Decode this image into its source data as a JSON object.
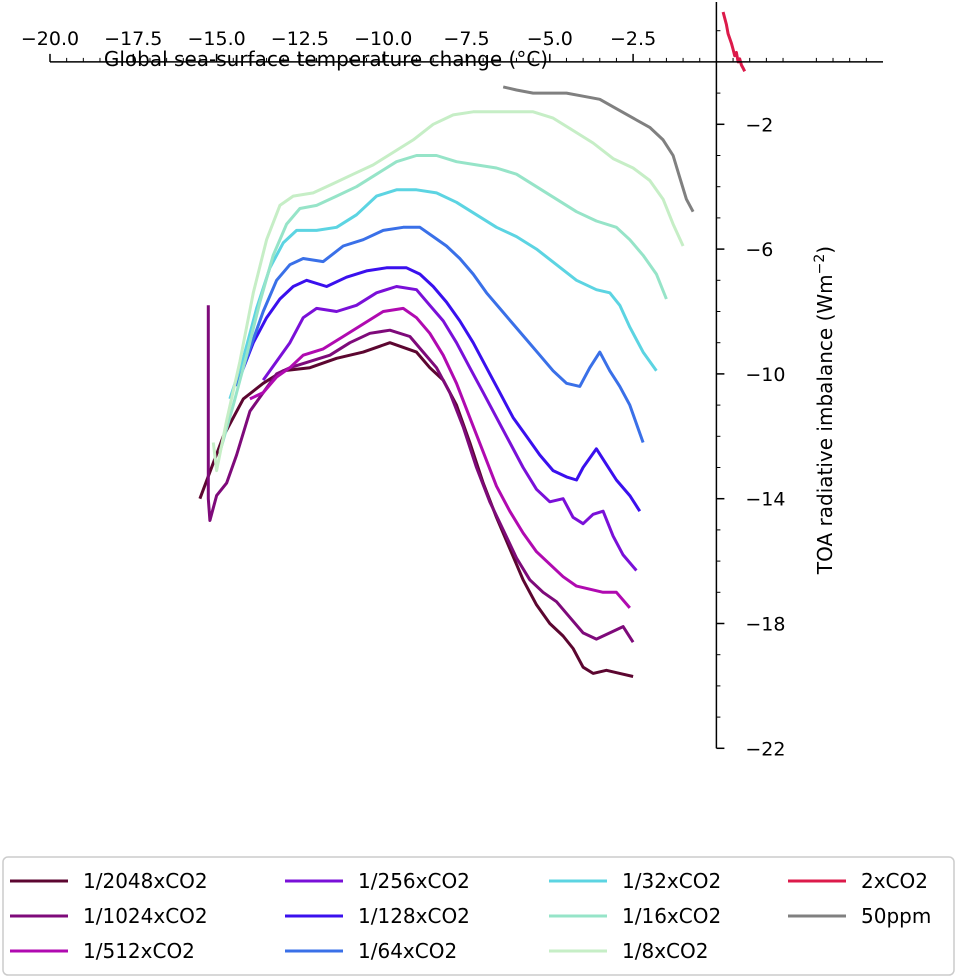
{
  "chart_data": {
    "type": "line",
    "title": "",
    "xlabel": "Global sea-surface temperature change (°C)",
    "ylabel": "TOA radiative imbalance (Wm",
    "ylabel_sup": "−2",
    "xlim": [
      -20.0,
      0.0
    ],
    "ylim": [
      -22,
      2
    ],
    "x_ticks": [
      -20.0,
      -17.5,
      -15.0,
      -12.5,
      -10.0,
      -7.5,
      -5.0,
      -2.5
    ],
    "x_tick_labels": [
      "−20.0",
      "−17.5",
      "−15.0",
      "−12.5",
      "−10.0",
      "−7.5",
      "−5.0",
      "−2.5"
    ],
    "y_ticks": [
      -2,
      -6,
      -10,
      -14,
      -18,
      -22
    ],
    "y_tick_labels": [
      "−2",
      "−6",
      "−10",
      "−14",
      "−18",
      "−22"
    ],
    "x_axis_position": "top",
    "y_axis_position": "right",
    "grid": false,
    "legend_position": "bottom",
    "series": [
      {
        "name": "1/2048xCO2",
        "color": "#5c0630",
        "points": [
          [
            -15.5,
            -14.0
          ],
          [
            -14.8,
            -12.0
          ],
          [
            -14.2,
            -10.8
          ],
          [
            -13.6,
            -10.3
          ],
          [
            -13.0,
            -9.9
          ],
          [
            -12.2,
            -9.8
          ],
          [
            -11.4,
            -9.5
          ],
          [
            -10.6,
            -9.3
          ],
          [
            -9.8,
            -9.0
          ],
          [
            -9.0,
            -9.3
          ],
          [
            -8.6,
            -9.8
          ],
          [
            -8.2,
            -10.2
          ],
          [
            -7.8,
            -11.0
          ],
          [
            -7.4,
            -12.2
          ],
          [
            -7.0,
            -13.5
          ],
          [
            -6.6,
            -14.6
          ],
          [
            -6.2,
            -15.6
          ],
          [
            -5.8,
            -16.6
          ],
          [
            -5.4,
            -17.4
          ],
          [
            -5.0,
            -18.0
          ],
          [
            -4.6,
            -18.4
          ],
          [
            -4.3,
            -18.8
          ],
          [
            -4.0,
            -19.4
          ],
          [
            -3.7,
            -19.6
          ],
          [
            -3.3,
            -19.5
          ],
          [
            -2.9,
            -19.6
          ],
          [
            -2.5,
            -19.7
          ]
        ]
      },
      {
        "name": "1/1024xCO2",
        "color": "#7e0a7a",
        "points": [
          [
            -15.25,
            -7.8
          ],
          [
            -15.25,
            -14.0
          ],
          [
            -15.2,
            -14.7
          ],
          [
            -15.0,
            -13.9
          ],
          [
            -14.7,
            -13.5
          ],
          [
            -14.4,
            -12.6
          ],
          [
            -14.0,
            -11.2
          ],
          [
            -13.6,
            -10.6
          ],
          [
            -13.2,
            -10.0
          ],
          [
            -12.8,
            -9.8
          ],
          [
            -12.2,
            -9.6
          ],
          [
            -11.6,
            -9.4
          ],
          [
            -11.0,
            -9.0
          ],
          [
            -10.4,
            -8.7
          ],
          [
            -9.8,
            -8.6
          ],
          [
            -9.2,
            -8.8
          ],
          [
            -8.8,
            -9.3
          ],
          [
            -8.4,
            -9.8
          ],
          [
            -8.0,
            -10.6
          ],
          [
            -7.6,
            -11.7
          ],
          [
            -7.2,
            -13.0
          ],
          [
            -6.8,
            -14.1
          ],
          [
            -6.4,
            -15.0
          ],
          [
            -6.0,
            -15.9
          ],
          [
            -5.6,
            -16.6
          ],
          [
            -5.2,
            -17.0
          ],
          [
            -4.8,
            -17.3
          ],
          [
            -4.4,
            -17.8
          ],
          [
            -4.0,
            -18.3
          ],
          [
            -3.6,
            -18.5
          ],
          [
            -3.2,
            -18.3
          ],
          [
            -2.8,
            -18.1
          ],
          [
            -2.5,
            -18.6
          ]
        ]
      },
      {
        "name": "1/512xCO2",
        "color": "#b00ab0",
        "points": [
          [
            -14.0,
            -10.8
          ],
          [
            -13.6,
            -10.6
          ],
          [
            -13.2,
            -10.1
          ],
          [
            -12.8,
            -9.8
          ],
          [
            -12.4,
            -9.4
          ],
          [
            -11.8,
            -9.2
          ],
          [
            -11.2,
            -8.8
          ],
          [
            -10.6,
            -8.4
          ],
          [
            -10.0,
            -8.0
          ],
          [
            -9.4,
            -7.9
          ],
          [
            -9.0,
            -8.2
          ],
          [
            -8.6,
            -8.7
          ],
          [
            -8.2,
            -9.4
          ],
          [
            -7.8,
            -10.3
          ],
          [
            -7.4,
            -11.4
          ],
          [
            -7.0,
            -12.5
          ],
          [
            -6.6,
            -13.6
          ],
          [
            -6.2,
            -14.4
          ],
          [
            -5.8,
            -15.1
          ],
          [
            -5.4,
            -15.7
          ],
          [
            -5.0,
            -16.1
          ],
          [
            -4.6,
            -16.5
          ],
          [
            -4.2,
            -16.8
          ],
          [
            -3.8,
            -16.9
          ],
          [
            -3.4,
            -17.0
          ],
          [
            -3.0,
            -17.0
          ],
          [
            -2.6,
            -17.5
          ]
        ]
      },
      {
        "name": "1/256xCO2",
        "color": "#7a10d8",
        "points": [
          [
            -13.6,
            -10.2
          ],
          [
            -13.2,
            -9.6
          ],
          [
            -12.8,
            -9.0
          ],
          [
            -12.4,
            -8.2
          ],
          [
            -12.0,
            -7.9
          ],
          [
            -11.4,
            -8.0
          ],
          [
            -10.8,
            -7.8
          ],
          [
            -10.2,
            -7.4
          ],
          [
            -9.6,
            -7.2
          ],
          [
            -9.0,
            -7.3
          ],
          [
            -8.6,
            -7.8
          ],
          [
            -8.2,
            -8.3
          ],
          [
            -7.8,
            -9.0
          ],
          [
            -7.4,
            -9.8
          ],
          [
            -7.0,
            -10.6
          ],
          [
            -6.6,
            -11.4
          ],
          [
            -6.2,
            -12.2
          ],
          [
            -5.8,
            -13.0
          ],
          [
            -5.4,
            -13.7
          ],
          [
            -5.0,
            -14.1
          ],
          [
            -4.6,
            -14.0
          ],
          [
            -4.3,
            -14.6
          ],
          [
            -4.0,
            -14.8
          ],
          [
            -3.7,
            -14.5
          ],
          [
            -3.4,
            -14.4
          ],
          [
            -3.1,
            -15.2
          ],
          [
            -2.8,
            -15.8
          ],
          [
            -2.4,
            -16.3
          ]
        ]
      },
      {
        "name": "1/128xCO2",
        "color": "#3a10ee",
        "points": [
          [
            -14.3,
            -10.1
          ],
          [
            -13.9,
            -9.0
          ],
          [
            -13.5,
            -8.2
          ],
          [
            -13.1,
            -7.6
          ],
          [
            -12.7,
            -7.2
          ],
          [
            -12.3,
            -7.0
          ],
          [
            -11.7,
            -7.2
          ],
          [
            -11.1,
            -6.9
          ],
          [
            -10.5,
            -6.7
          ],
          [
            -9.9,
            -6.6
          ],
          [
            -9.3,
            -6.6
          ],
          [
            -8.9,
            -6.8
          ],
          [
            -8.5,
            -7.2
          ],
          [
            -8.1,
            -7.7
          ],
          [
            -7.7,
            -8.3
          ],
          [
            -7.3,
            -9.0
          ],
          [
            -6.9,
            -9.8
          ],
          [
            -6.5,
            -10.6
          ],
          [
            -6.1,
            -11.4
          ],
          [
            -5.7,
            -12.0
          ],
          [
            -5.3,
            -12.6
          ],
          [
            -4.9,
            -13.1
          ],
          [
            -4.5,
            -13.3
          ],
          [
            -4.2,
            -13.4
          ],
          [
            -4.0,
            -13.0
          ],
          [
            -3.6,
            -12.4
          ],
          [
            -3.3,
            -12.9
          ],
          [
            -3.0,
            -13.4
          ],
          [
            -2.6,
            -13.9
          ],
          [
            -2.3,
            -14.4
          ]
        ]
      },
      {
        "name": "1/64xCO2",
        "color": "#3a70e8",
        "points": [
          [
            -14.4,
            -10.4
          ],
          [
            -14.0,
            -9.2
          ],
          [
            -13.6,
            -8.0
          ],
          [
            -13.2,
            -7.0
          ],
          [
            -12.8,
            -6.5
          ],
          [
            -12.4,
            -6.3
          ],
          [
            -11.8,
            -6.4
          ],
          [
            -11.2,
            -5.9
          ],
          [
            -10.6,
            -5.7
          ],
          [
            -10.0,
            -5.4
          ],
          [
            -9.4,
            -5.3
          ],
          [
            -8.9,
            -5.3
          ],
          [
            -8.5,
            -5.6
          ],
          [
            -8.1,
            -5.9
          ],
          [
            -7.7,
            -6.3
          ],
          [
            -7.3,
            -6.8
          ],
          [
            -6.9,
            -7.4
          ],
          [
            -6.5,
            -7.9
          ],
          [
            -6.1,
            -8.4
          ],
          [
            -5.7,
            -8.9
          ],
          [
            -5.3,
            -9.4
          ],
          [
            -4.9,
            -9.9
          ],
          [
            -4.5,
            -10.3
          ],
          [
            -4.1,
            -10.4
          ],
          [
            -3.8,
            -9.8
          ],
          [
            -3.5,
            -9.3
          ],
          [
            -3.2,
            -9.9
          ],
          [
            -2.9,
            -10.4
          ],
          [
            -2.6,
            -11.0
          ],
          [
            -2.2,
            -12.2
          ]
        ]
      },
      {
        "name": "1/32xCO2",
        "color": "#5cd4e2",
        "points": [
          [
            -14.6,
            -10.8
          ],
          [
            -14.2,
            -9.5
          ],
          [
            -13.8,
            -7.9
          ],
          [
            -13.4,
            -6.6
          ],
          [
            -13.0,
            -5.8
          ],
          [
            -12.6,
            -5.4
          ],
          [
            -12.0,
            -5.4
          ],
          [
            -11.4,
            -5.3
          ],
          [
            -10.8,
            -4.9
          ],
          [
            -10.2,
            -4.3
          ],
          [
            -9.6,
            -4.1
          ],
          [
            -9.0,
            -4.1
          ],
          [
            -8.4,
            -4.2
          ],
          [
            -7.8,
            -4.5
          ],
          [
            -7.2,
            -4.9
          ],
          [
            -6.6,
            -5.3
          ],
          [
            -6.0,
            -5.6
          ],
          [
            -5.4,
            -6.0
          ],
          [
            -4.8,
            -6.5
          ],
          [
            -4.2,
            -7.0
          ],
          [
            -3.6,
            -7.3
          ],
          [
            -3.2,
            -7.4
          ],
          [
            -2.9,
            -7.8
          ],
          [
            -2.6,
            -8.5
          ],
          [
            -2.2,
            -9.3
          ],
          [
            -1.8,
            -9.9
          ]
        ]
      },
      {
        "name": "1/16xCO2",
        "color": "#96e4c8",
        "points": [
          [
            -14.9,
            -12.5
          ],
          [
            -14.5,
            -11.0
          ],
          [
            -14.1,
            -9.4
          ],
          [
            -13.7,
            -7.7
          ],
          [
            -13.3,
            -6.2
          ],
          [
            -12.9,
            -5.2
          ],
          [
            -12.5,
            -4.7
          ],
          [
            -12.0,
            -4.6
          ],
          [
            -11.4,
            -4.3
          ],
          [
            -10.8,
            -4.0
          ],
          [
            -10.2,
            -3.6
          ],
          [
            -9.6,
            -3.2
          ],
          [
            -9.0,
            -3.0
          ],
          [
            -8.4,
            -3.0
          ],
          [
            -7.8,
            -3.2
          ],
          [
            -7.2,
            -3.3
          ],
          [
            -6.6,
            -3.4
          ],
          [
            -6.0,
            -3.6
          ],
          [
            -5.4,
            -4.0
          ],
          [
            -4.8,
            -4.4
          ],
          [
            -4.2,
            -4.8
          ],
          [
            -3.6,
            -5.1
          ],
          [
            -3.0,
            -5.3
          ],
          [
            -2.6,
            -5.7
          ],
          [
            -2.2,
            -6.2
          ],
          [
            -1.8,
            -6.8
          ],
          [
            -1.5,
            -7.6
          ]
        ]
      },
      {
        "name": "1/8xCO2",
        "color": "#c6eec6",
        "points": [
          [
            -15.1,
            -12.2
          ],
          [
            -15.0,
            -13.1
          ],
          [
            -14.7,
            -11.5
          ],
          [
            -14.3,
            -9.6
          ],
          [
            -13.9,
            -7.4
          ],
          [
            -13.5,
            -5.7
          ],
          [
            -13.1,
            -4.6
          ],
          [
            -12.7,
            -4.3
          ],
          [
            -12.1,
            -4.2
          ],
          [
            -11.5,
            -3.9
          ],
          [
            -10.9,
            -3.6
          ],
          [
            -10.3,
            -3.3
          ],
          [
            -9.7,
            -2.9
          ],
          [
            -9.1,
            -2.5
          ],
          [
            -8.5,
            -2.0
          ],
          [
            -7.9,
            -1.7
          ],
          [
            -7.3,
            -1.6
          ],
          [
            -6.7,
            -1.6
          ],
          [
            -6.1,
            -1.6
          ],
          [
            -5.5,
            -1.6
          ],
          [
            -4.9,
            -1.8
          ],
          [
            -4.3,
            -2.2
          ],
          [
            -3.7,
            -2.6
          ],
          [
            -3.1,
            -3.1
          ],
          [
            -2.5,
            -3.4
          ],
          [
            -2.0,
            -3.8
          ],
          [
            -1.6,
            -4.4
          ],
          [
            -1.3,
            -5.2
          ],
          [
            -1.0,
            -5.9
          ]
        ]
      },
      {
        "name": "2xCO2",
        "color": "#dc1a4a",
        "points": [
          [
            0.2,
            1.6
          ],
          [
            0.3,
            1.2
          ],
          [
            0.35,
            0.9
          ],
          [
            0.45,
            0.6
          ],
          [
            0.5,
            0.4
          ],
          [
            0.55,
            0.2
          ],
          [
            0.6,
            0.3
          ],
          [
            0.65,
            0.0
          ],
          [
            0.7,
            0.1
          ],
          [
            0.75,
            -0.1
          ],
          [
            0.8,
            -0.2
          ],
          [
            0.85,
            -0.3
          ]
        ]
      },
      {
        "name": "50ppm",
        "color": "#808080",
        "points": [
          [
            -6.4,
            -0.8
          ],
          [
            -6.0,
            -0.9
          ],
          [
            -5.5,
            -1.0
          ],
          [
            -5.0,
            -1.0
          ],
          [
            -4.5,
            -1.0
          ],
          [
            -4.0,
            -1.1
          ],
          [
            -3.5,
            -1.2
          ],
          [
            -3.0,
            -1.5
          ],
          [
            -2.5,
            -1.8
          ],
          [
            -2.0,
            -2.1
          ],
          [
            -1.6,
            -2.5
          ],
          [
            -1.3,
            -3.0
          ],
          [
            -1.1,
            -3.7
          ],
          [
            -0.9,
            -4.4
          ],
          [
            -0.7,
            -4.8
          ]
        ]
      }
    ]
  }
}
